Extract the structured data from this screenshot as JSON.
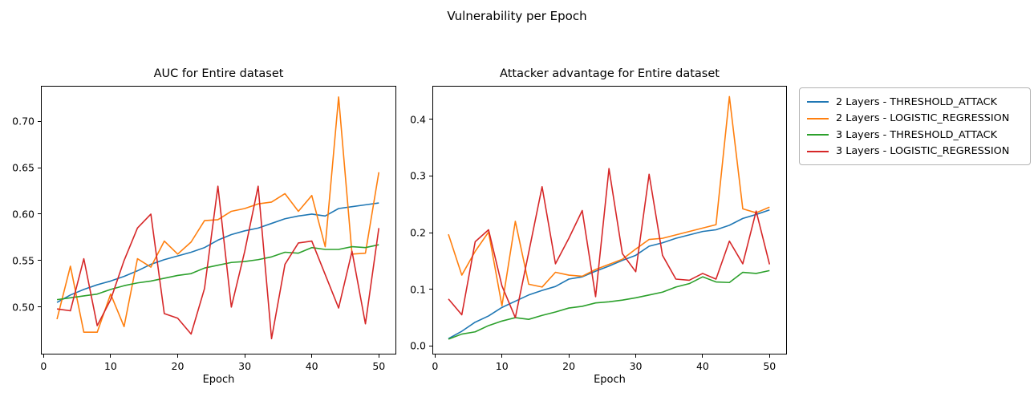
{
  "figure": {
    "suptitle": "Vulnerability per Epoch"
  },
  "legend": {
    "position": "outside-right-top",
    "entries": [
      {
        "label": "2 Layers - THRESHOLD_ATTACK",
        "color": "#1f77b4"
      },
      {
        "label": "2 Layers - LOGISTIC_REGRESSION",
        "color": "#ff7f0e"
      },
      {
        "label": "3 Layers - THRESHOLD_ATTACK",
        "color": "#2ca02c"
      },
      {
        "label": "3 Layers - LOGISTIC_REGRESSION",
        "color": "#d62728"
      }
    ]
  },
  "chart_data": [
    {
      "type": "line",
      "title": "AUC for Entire dataset",
      "xlabel": "Epoch",
      "grid": false,
      "xlim": [
        -0.4,
        52.6
      ],
      "ylim": [
        0.449,
        0.738
      ],
      "xticks": [
        0,
        10,
        20,
        30,
        40,
        50
      ],
      "xtick_labels": [
        "0",
        "10",
        "20",
        "30",
        "40",
        "50"
      ],
      "yticks": [
        0.5,
        0.55,
        0.6,
        0.65,
        0.7
      ],
      "ytick_labels": [
        "0.50",
        "0.55",
        "0.60",
        "0.65",
        "0.70"
      ],
      "x": [
        2,
        4,
        6,
        8,
        10,
        12,
        14,
        16,
        18,
        20,
        22,
        24,
        26,
        28,
        30,
        32,
        34,
        36,
        38,
        40,
        42,
        44,
        46,
        48,
        50
      ],
      "series": [
        {
          "name": "2 Layers - THRESHOLD_ATTACK",
          "color": "#1f77b4",
          "values": [
            0.505,
            0.513,
            0.519,
            0.524,
            0.528,
            0.533,
            0.539,
            0.546,
            0.551,
            0.555,
            0.559,
            0.564,
            0.572,
            0.578,
            0.582,
            0.585,
            0.59,
            0.595,
            0.598,
            0.6,
            0.598,
            0.606,
            0.608,
            0.61,
            0.612
          ]
        },
        {
          "name": "2 Layers - LOGISTIC_REGRESSION",
          "color": "#ff7f0e",
          "values": [
            0.487,
            0.544,
            0.473,
            0.473,
            0.514,
            0.479,
            0.552,
            0.543,
            0.571,
            0.557,
            0.57,
            0.593,
            0.594,
            0.603,
            0.606,
            0.611,
            0.613,
            0.622,
            0.603,
            0.62,
            0.565,
            0.726,
            0.557,
            0.558,
            0.645
          ]
        },
        {
          "name": "3 Layers - THRESHOLD_ATTACK",
          "color": "#2ca02c",
          "values": [
            0.508,
            0.51,
            0.512,
            0.514,
            0.519,
            0.523,
            0.526,
            0.528,
            0.531,
            0.534,
            0.536,
            0.542,
            0.545,
            0.548,
            0.549,
            0.551,
            0.554,
            0.559,
            0.558,
            0.564,
            0.562,
            0.562,
            0.565,
            0.564,
            0.567
          ]
        },
        {
          "name": "3 Layers - LOGISTIC_REGRESSION",
          "color": "#d62728",
          "values": [
            0.498,
            0.496,
            0.552,
            0.48,
            0.508,
            0.55,
            0.585,
            0.6,
            0.493,
            0.488,
            0.471,
            0.52,
            0.63,
            0.5,
            0.56,
            0.63,
            0.466,
            0.546,
            0.569,
            0.571,
            0.535,
            0.499,
            0.56,
            0.482,
            0.585
          ]
        }
      ]
    },
    {
      "type": "line",
      "title": "Attacker advantage for Entire dataset",
      "xlabel": "Epoch",
      "grid": false,
      "xlim": [
        -0.4,
        52.6
      ],
      "ylim": [
        -0.015,
        0.459
      ],
      "xticks": [
        0,
        10,
        20,
        30,
        40,
        50
      ],
      "xtick_labels": [
        "0",
        "10",
        "20",
        "30",
        "40",
        "50"
      ],
      "yticks": [
        0.0,
        0.1,
        0.2,
        0.3,
        0.4
      ],
      "ytick_labels": [
        "0.0",
        "0.1",
        "0.2",
        "0.3",
        "0.4"
      ],
      "x": [
        2,
        4,
        6,
        8,
        10,
        12,
        14,
        16,
        18,
        20,
        22,
        24,
        26,
        28,
        30,
        32,
        34,
        36,
        38,
        40,
        42,
        44,
        46,
        48,
        50
      ],
      "series": [
        {
          "name": "2 Layers - THRESHOLD_ATTACK",
          "color": "#1f77b4",
          "values": [
            0.013,
            0.026,
            0.042,
            0.053,
            0.068,
            0.079,
            0.09,
            0.098,
            0.105,
            0.118,
            0.122,
            0.132,
            0.141,
            0.151,
            0.16,
            0.176,
            0.182,
            0.19,
            0.196,
            0.202,
            0.205,
            0.213,
            0.225,
            0.232,
            0.24
          ]
        },
        {
          "name": "2 Layers - LOGISTIC_REGRESSION",
          "color": "#ff7f0e",
          "values": [
            0.197,
            0.125,
            0.167,
            0.201,
            0.071,
            0.22,
            0.109,
            0.104,
            0.13,
            0.125,
            0.123,
            0.135,
            0.144,
            0.153,
            0.171,
            0.188,
            0.19,
            0.196,
            0.202,
            0.208,
            0.214,
            0.44,
            0.242,
            0.235,
            0.245
          ]
        },
        {
          "name": "3 Layers - THRESHOLD_ATTACK",
          "color": "#2ca02c",
          "values": [
            0.012,
            0.021,
            0.025,
            0.036,
            0.044,
            0.05,
            0.047,
            0.054,
            0.06,
            0.067,
            0.07,
            0.076,
            0.078,
            0.081,
            0.085,
            0.09,
            0.095,
            0.104,
            0.11,
            0.122,
            0.113,
            0.112,
            0.13,
            0.128,
            0.133
          ]
        },
        {
          "name": "3 Layers - LOGISTIC_REGRESSION",
          "color": "#d62728",
          "values": [
            0.083,
            0.055,
            0.184,
            0.205,
            0.106,
            0.05,
            0.165,
            0.281,
            0.145,
            0.19,
            0.239,
            0.087,
            0.313,
            0.163,
            0.131,
            0.303,
            0.16,
            0.118,
            0.116,
            0.128,
            0.118,
            0.185,
            0.145,
            0.238,
            0.144
          ]
        }
      ]
    }
  ]
}
